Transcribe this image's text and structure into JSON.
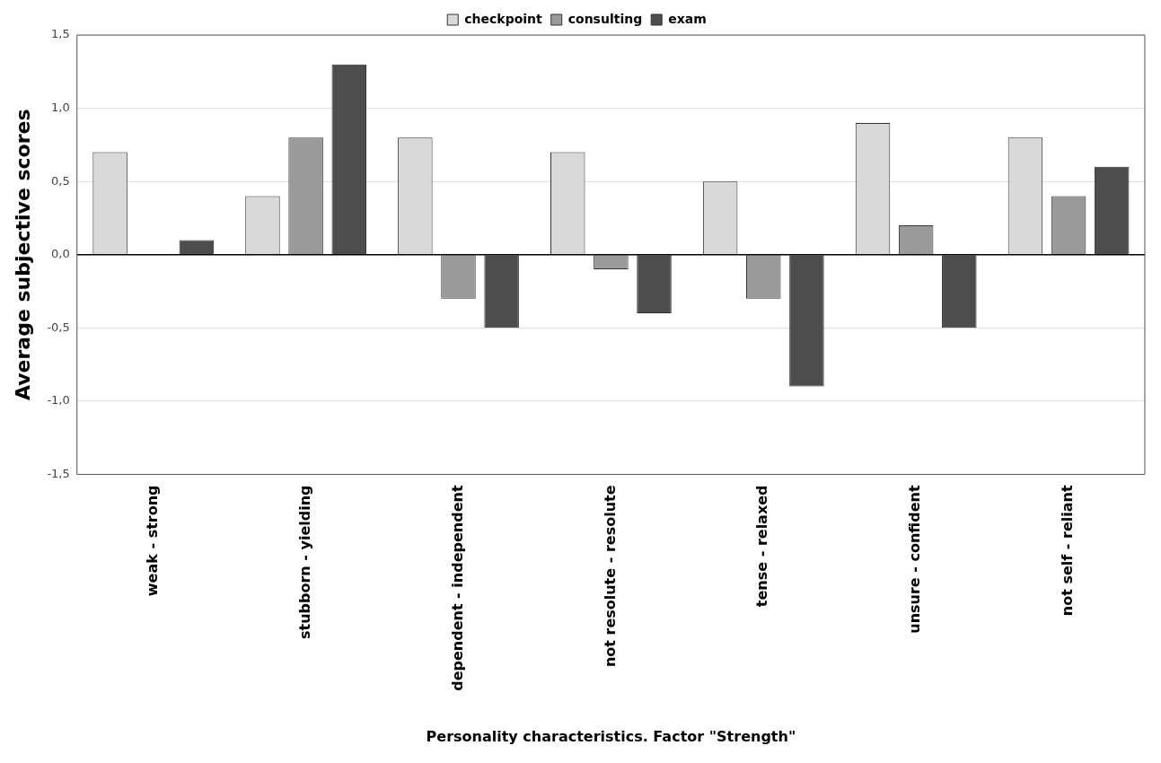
{
  "chart_data": {
    "type": "bar",
    "xlabel": "Personality characteristics. Factor \"Strength\"",
    "ylabel": "Average subjective scores",
    "categories": [
      "weak - strong",
      "stubborn - yielding",
      "dependent - independent",
      "not resolute - resolute",
      "tense - relaxed",
      "unsure - confident",
      "not self - reliant"
    ],
    "series": [
      {
        "name": "checkpoint",
        "color": "#d9d9d9",
        "values": [
          0.7,
          0.4,
          0.8,
          0.7,
          0.5,
          0.9,
          0.8
        ]
      },
      {
        "name": "consulting",
        "color": "#9a9a9a",
        "values": [
          0,
          0.8,
          -0.3,
          -0.1,
          -0.3,
          0.2,
          0.4
        ]
      },
      {
        "name": "exam",
        "color": "#4d4d4d",
        "values": [
          0.1,
          1.3,
          -0.5,
          -0.4,
          -0.9,
          -0.5,
          0.6
        ]
      }
    ],
    "ylim": [
      -1.5,
      1.5
    ],
    "yticks": [
      {
        "value": -1.5,
        "label": "-1,5"
      },
      {
        "value": -1,
        "label": "-1,0"
      },
      {
        "value": -0.5,
        "label": "-0,5"
      },
      {
        "value": 0,
        "label": "0,0"
      },
      {
        "value": 0.5,
        "label": "0,5"
      },
      {
        "value": 1,
        "label": "1,0"
      },
      {
        "value": 1.5,
        "label": "1,5"
      }
    ],
    "grid": "y",
    "legend": "top"
  }
}
